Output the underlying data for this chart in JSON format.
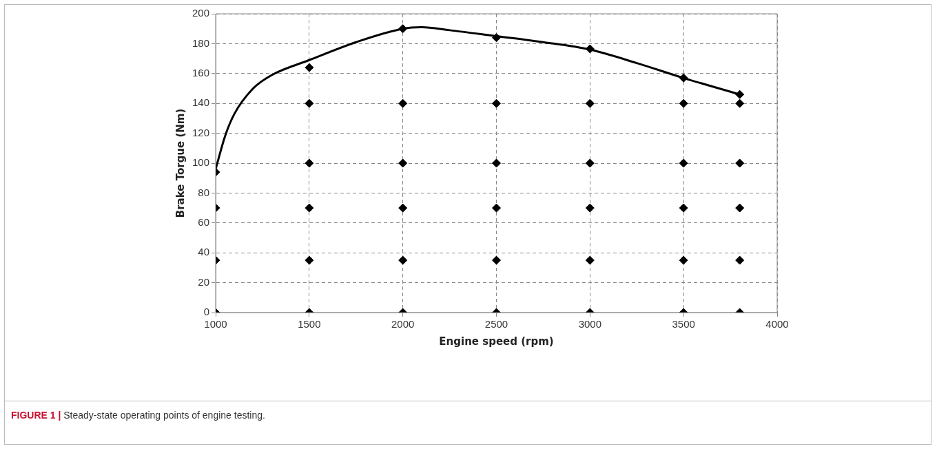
{
  "chart_data": {
    "type": "scatter",
    "xlabel": "Engine speed (rpm)",
    "ylabel": "Brake Torgue (Nm)",
    "xlim": [
      1000,
      4000
    ],
    "xticks": [
      1000,
      1500,
      2000,
      2500,
      3000,
      3500,
      4000
    ],
    "ylim": [
      0,
      200
    ],
    "yticks": [
      0,
      20,
      40,
      60,
      80,
      100,
      120,
      140,
      160,
      180,
      200
    ],
    "grid": true,
    "legend": false,
    "series": [
      {
        "type": "line",
        "color": "#000000",
        "marker": "none",
        "line_style": "solid",
        "x": [
          1000,
          1050,
          1100,
          1200,
          1300,
          1500,
          1750,
          2000,
          2100,
          2250,
          2500,
          2750,
          3000,
          3250,
          3500,
          3800
        ],
        "values": [
          96,
          118,
          133,
          150,
          159,
          169,
          181,
          190,
          191,
          189,
          185,
          181,
          176,
          167,
          157,
          146
        ]
      },
      {
        "color": "#000000",
        "marker": "diamond",
        "x": [
          1000,
          1000,
          1000,
          1000,
          1500,
          1500,
          1500,
          1500,
          1500,
          1500,
          2000,
          2000,
          2000,
          2000,
          2000,
          2000,
          2500,
          2500,
          2500,
          2500,
          2500,
          2500,
          3000,
          3000,
          3000,
          3000,
          3000,
          3000,
          3500,
          3500,
          3500,
          3500,
          3500,
          3500,
          3800,
          3800,
          3800,
          3800,
          3800,
          3800
        ],
        "values": [
          94,
          70,
          35,
          0,
          164,
          140,
          100,
          70,
          35,
          0,
          190,
          140,
          100,
          70,
          35,
          0,
          184,
          140,
          100,
          70,
          35,
          0,
          176.5,
          140,
          100,
          70,
          35,
          0,
          157,
          140,
          100,
          70,
          35,
          0,
          146,
          140,
          100,
          70,
          35,
          0
        ]
      }
    ],
    "annotations": [
      "FIGURE 1 | Steady-state operating points of engine testing."
    ]
  }
}
